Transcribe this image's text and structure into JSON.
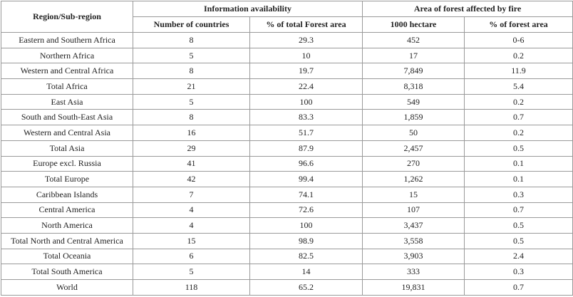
{
  "table": {
    "header": {
      "region": "Region/Sub-region",
      "group1": "Information availability",
      "group2": "Area of forest affected by fire",
      "columns": [
        "Number of countries",
        "% of total Forest area",
        "1000 hectare",
        "% of forest area"
      ]
    },
    "rows": [
      [
        "Eastern and Southern Africa",
        "8",
        "29.3",
        "452",
        "0-6"
      ],
      [
        "Northern Africa",
        "5",
        "10",
        "17",
        "0.2"
      ],
      [
        "Western and Central Africa",
        "8",
        "19.7",
        "7,849",
        "11.9"
      ],
      [
        "Total Africa",
        "21",
        "22.4",
        "8,318",
        "5.4"
      ],
      [
        "East Asia",
        "5",
        "100",
        "549",
        "0.2"
      ],
      [
        "South and South-East Asia",
        "8",
        "83.3",
        "1,859",
        "0.7"
      ],
      [
        "Western and Central Asia",
        "16",
        "51.7",
        "50",
        "0.2"
      ],
      [
        "Total Asia",
        "29",
        "87.9",
        "2,457",
        "0.5"
      ],
      [
        "Europe excl. Russia",
        "41",
        "96.6",
        "270",
        "0.1"
      ],
      [
        "Total Europe",
        "42",
        "99.4",
        "1,262",
        "0.1"
      ],
      [
        "Caribbean Islands",
        "7",
        "74.1",
        "15",
        "0.3"
      ],
      [
        "Central America",
        "4",
        "72.6",
        "107",
        "0.7"
      ],
      [
        "North America",
        "4",
        "100",
        "3,437",
        "0.5"
      ],
      [
        "Total North and Central America",
        "15",
        "98.9",
        "3,558",
        "0.5"
      ],
      [
        "Total Oceania",
        "6",
        "82.5",
        "3,903",
        "2.4"
      ],
      [
        "Total South America",
        "5",
        "14",
        "333",
        "0.3"
      ],
      [
        "World",
        "118",
        "65.2",
        "19,831",
        "0.7"
      ]
    ]
  }
}
